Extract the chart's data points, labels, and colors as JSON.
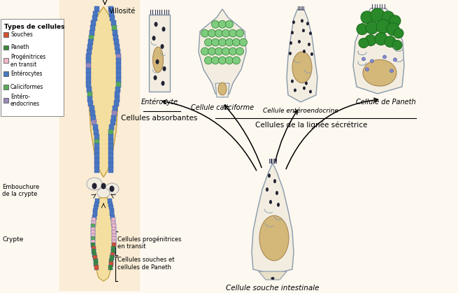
{
  "background_color": "#fdf8f0",
  "figsize": [
    6.55,
    4.19
  ],
  "dpi": 100,
  "legend_items": [
    {
      "label": "Souches",
      "color": "#d45030"
    },
    {
      "label": "Paneth",
      "color": "#3a8a3a"
    },
    {
      "label": "Progénitrices\nen transit",
      "color": "#f0b8c8"
    },
    {
      "label": "Entérocytes",
      "color": "#4a78c0"
    },
    {
      "label": "Caliciformes",
      "color": "#5aaa5a"
    },
    {
      "label": "Entéro-\nendocrines",
      "color": "#9988bb"
    }
  ],
  "labels": {
    "villosite": "Villosité",
    "embouchure": "Embouchure\nde la crypte",
    "crypte": "Crypte",
    "prog_transit": "Cellules progénitrices\nen transit",
    "souches_paneth": "Cellules souches et\ncellules de Paneth",
    "enterocyte": "Entérocyte",
    "caliciforme": "Cellule caliciforme",
    "enteroendocrine": "Cellule entéroendocrine",
    "paneth": "Cellule de Paneth",
    "absorbantes": "Cellules absorbantes",
    "secretrice": "Cellules de la lignée sécrétrice",
    "souche_int": "Cellule souche intestinale",
    "types_cellules": "Types de cellules"
  },
  "colors": {
    "villus_fill": "#f5dfa0",
    "villus_border": "#4a78c0",
    "enterocyte_blue": "#4a78c0",
    "caliciforme_green": "#5aaa5a",
    "enteroendocrine_purple": "#9988bb",
    "paneth_fill": "#3a8a3a",
    "stem_orange": "#d45030",
    "prog_pink": "#f0b8c8",
    "cell_bg": "#f2ede0",
    "nucleus_tan": "#d4b87a",
    "dark_dot": "#222233",
    "cell_edge": "#8899aa"
  }
}
